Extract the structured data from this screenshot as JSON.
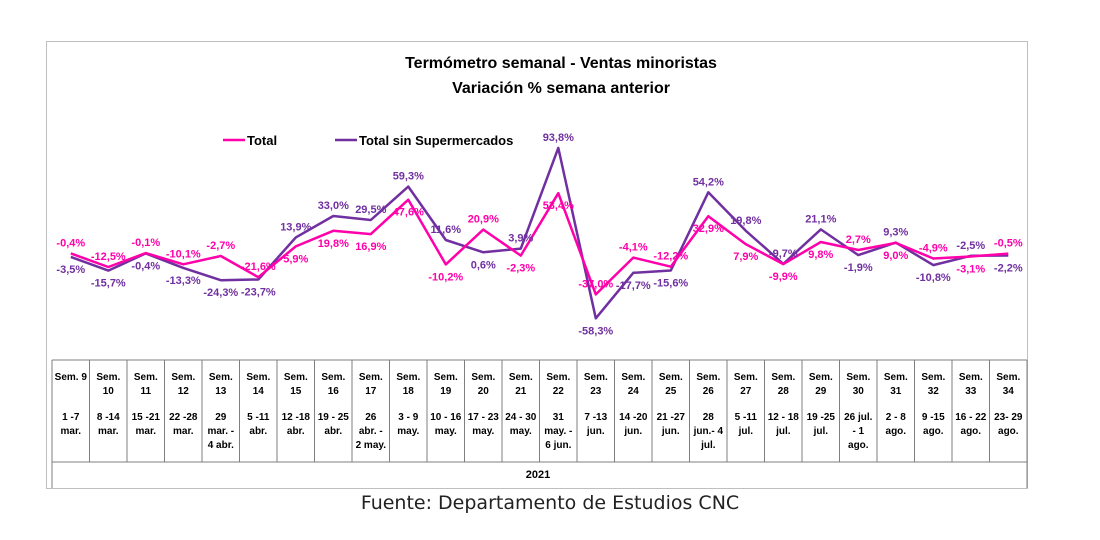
{
  "chart_data": {
    "type": "line",
    "title": "Termómetro semanal - Ventas minoristas",
    "subtitle": "Variación % semana anterior",
    "year_label": "2021",
    "categories": [
      {
        "week": "Sem. 9",
        "dates": [
          "1 -7",
          "mar."
        ]
      },
      {
        "week": "Sem. 10",
        "dates": [
          "8 -14",
          "mar."
        ]
      },
      {
        "week": "Sem. 11",
        "dates": [
          "15 -21",
          "mar."
        ]
      },
      {
        "week": "Sem. 12",
        "dates": [
          "22 -28",
          "mar."
        ]
      },
      {
        "week": "Sem. 13",
        "dates": [
          "29",
          "mar. -",
          "4 abr."
        ]
      },
      {
        "week": "Sem. 14",
        "dates": [
          "5 -11",
          "abr."
        ]
      },
      {
        "week": "Sem. 15",
        "dates": [
          "12 -18",
          "abr."
        ]
      },
      {
        "week": "Sem. 16",
        "dates": [
          "19 - 25",
          "abr."
        ]
      },
      {
        "week": "Sem. 17",
        "dates": [
          "26",
          "abr. -",
          "2 may."
        ]
      },
      {
        "week": "Sem. 18",
        "dates": [
          "3 - 9",
          "may."
        ]
      },
      {
        "week": "Sem. 19",
        "dates": [
          "10 - 16",
          "may."
        ]
      },
      {
        "week": "Sem. 20",
        "dates": [
          "17 - 23",
          "may."
        ]
      },
      {
        "week": "Sem. 21",
        "dates": [
          "24 - 30",
          "may."
        ]
      },
      {
        "week": "Sem. 22",
        "dates": [
          "31",
          "may. -",
          "6 jun."
        ]
      },
      {
        "week": "Sem. 23",
        "dates": [
          "7 -13",
          "jun."
        ]
      },
      {
        "week": "Sem. 24",
        "dates": [
          "14 -20",
          "jun."
        ]
      },
      {
        "week": "Sem. 25",
        "dates": [
          "21 -27",
          "jun."
        ]
      },
      {
        "week": "Sem. 26",
        "dates": [
          "28",
          "jun.- 4",
          "jul."
        ]
      },
      {
        "week": "Sem. 27",
        "dates": [
          "5 -11",
          "jul."
        ]
      },
      {
        "week": "Sem. 28",
        "dates": [
          "12 - 18",
          "jul."
        ]
      },
      {
        "week": "Sem. 29",
        "dates": [
          "19 -25",
          "jul."
        ]
      },
      {
        "week": "Sem. 30",
        "dates": [
          "26 jul.",
          "- 1",
          "ago."
        ]
      },
      {
        "week": "Sem. 31",
        "dates": [
          "2 - 8",
          "ago."
        ]
      },
      {
        "week": "Sem. 32",
        "dates": [
          "9 -15",
          "ago."
        ]
      },
      {
        "week": "Sem. 33",
        "dates": [
          "16 - 22",
          "ago."
        ]
      },
      {
        "week": "Sem. 34",
        "dates": [
          "23- 29",
          "ago."
        ]
      }
    ],
    "series": [
      {
        "name": "Total",
        "color": "#ff00aa",
        "values": [
          -0.4,
          -12.5,
          -0.1,
          -10.1,
          -2.7,
          -21.6,
          5.9,
          19.8,
          16.9,
          47.6,
          -10.2,
          20.9,
          -2.3,
          53.4,
          -37.0,
          -4.1,
          -12.2,
          32.9,
          7.9,
          -9.9,
          9.8,
          2.7,
          9.0,
          -4.9,
          -3.1,
          -0.5
        ],
        "labels": [
          "-0,4%",
          "-12,5%",
          "-0,1%",
          "-10,1%",
          "-2,7%",
          "-21,6%",
          "5,9%",
          "19,8%",
          "16,9%",
          "47,6%",
          "-10,2%",
          "20,9%",
          "-2,3%",
          "53,4%",
          "-37,0%",
          "-4,1%",
          "-12,2%",
          "32,9%",
          "7,9%",
          "-9,9%",
          "9,8%",
          "2,7%",
          "9,0%",
          "-4,9%",
          "-3,1%",
          "-0,5%"
        ]
      },
      {
        "name": "Total sin Supermercados",
        "color": "#7030a0",
        "values": [
          -3.5,
          -15.7,
          -0.4,
          -13.3,
          -24.3,
          -23.7,
          13.9,
          33.0,
          29.5,
          59.3,
          11.6,
          0.6,
          3.9,
          93.8,
          -58.3,
          -17.7,
          -15.6,
          54.2,
          19.8,
          -9.7,
          21.1,
          -1.9,
          9.3,
          -10.8,
          -2.5,
          -2.2
        ],
        "labels": [
          "-3,5%",
          "-15,7%",
          "-0,4%",
          "-13,3%",
          "-24,3%",
          "-23,7%",
          "13,9%",
          "33,0%",
          "29,5%",
          "59,3%",
          "11,6%",
          "0,6%",
          "3,9%",
          "93,8%",
          "-58,3%",
          "-17,7%",
          "-15,6%",
          "54,2%",
          "19,8%",
          "-9,7%",
          "21,1%",
          "-1,9%",
          "9,3%",
          "-10,8%",
          "-2,5%",
          "-2,2%"
        ]
      }
    ],
    "legend_position": "top-left",
    "grid": false
  },
  "source": "Fuente: Departamento de Estudios CNC"
}
